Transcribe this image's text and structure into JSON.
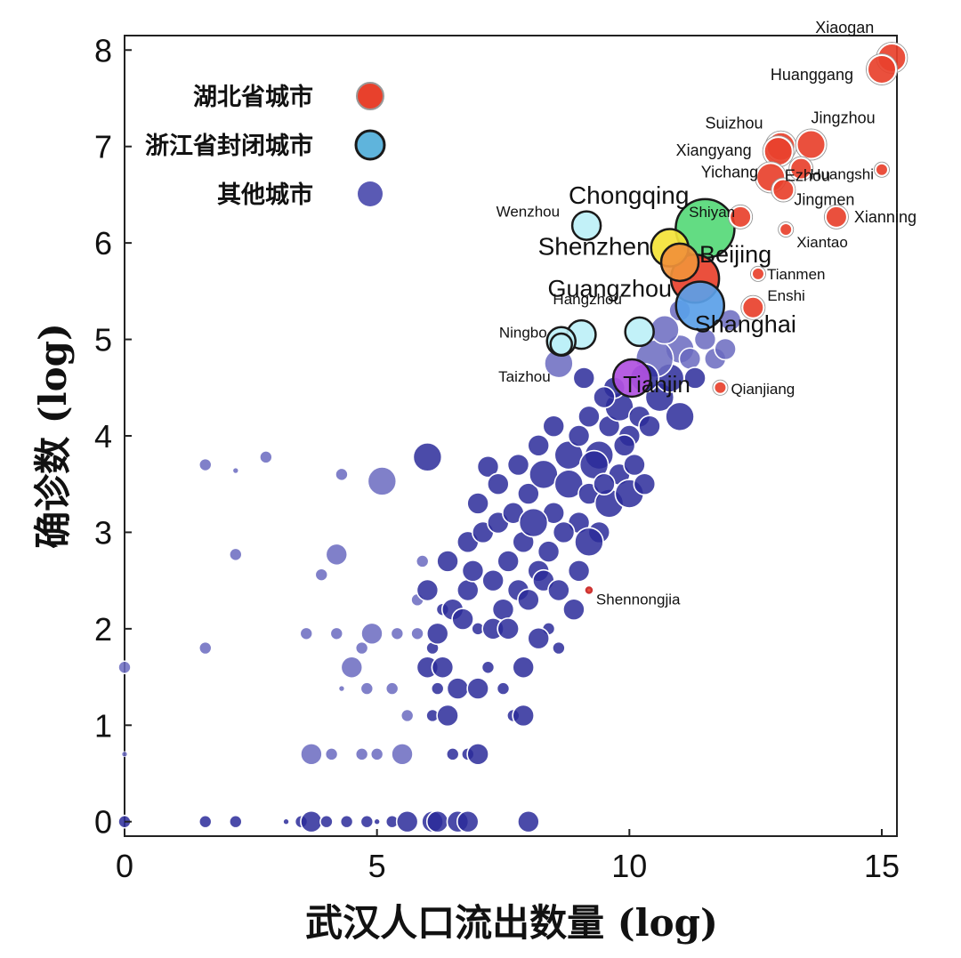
{
  "chart_data": {
    "type": "scatter",
    "title": "",
    "xlabel": "武汉人口流出数量 (log)",
    "ylabel": "确诊数 (log)",
    "xlim": [
      0,
      15.3
    ],
    "ylim": [
      -0.15,
      8.15
    ],
    "xticks": [
      0,
      5,
      10,
      15
    ],
    "yticks": [
      0,
      1,
      2,
      3,
      4,
      5,
      6,
      7,
      8
    ],
    "grid": false,
    "legend_position": "top-left",
    "legend": [
      {
        "label": "湖北省城市",
        "color": "#e8412c"
      },
      {
        "label": "浙江省封闭城市",
        "color": "#5fb4dc"
      },
      {
        "label": "其他城市",
        "color": "#5a5ab4"
      }
    ],
    "colors": {
      "hubei": "#e8412c",
      "zhejiang": "#bdf0f7",
      "other": "#2b2b9a",
      "other_light": "#6a6abf"
    },
    "labeled_points": [
      {
        "label": "Xiaogan",
        "x": 15.2,
        "y": 7.92,
        "size": 3,
        "color": "#e8412c",
        "ring": "#ffffff"
      },
      {
        "label": "Huanggang",
        "x": 15.0,
        "y": 7.8,
        "size": 3,
        "color": "#e8412c",
        "ring": "#ffffff"
      },
      {
        "label": "Suizhou",
        "x": 13.0,
        "y": 7.0,
        "size": 3,
        "color": "#e8412c",
        "ring": "#ffffff"
      },
      {
        "label": "Jingzhou",
        "x": 13.6,
        "y": 7.02,
        "size": 3,
        "color": "#e8412c",
        "ring": "#ffffff"
      },
      {
        "label": "Xiangyang",
        "x": 12.95,
        "y": 6.95,
        "size": 3,
        "color": "#e8412c",
        "ring": "#ffffff"
      },
      {
        "label": "Ezhou",
        "x": 15.0,
        "y": 6.76,
        "size": 1,
        "color": "#e8412c",
        "ring": "#ffffff"
      },
      {
        "label": "Huangshi",
        "x": 13.4,
        "y": 6.77,
        "size": 2,
        "color": "#e8412c",
        "ring": "#ffffff"
      },
      {
        "label": "Yichang",
        "x": 12.8,
        "y": 6.68,
        "size": 3,
        "color": "#e8412c",
        "ring": "#ffffff"
      },
      {
        "label": "Jingmen",
        "x": 13.05,
        "y": 6.55,
        "size": 2,
        "color": "#e8412c",
        "ring": "#ffffff"
      },
      {
        "label": "Shiyan",
        "x": 12.2,
        "y": 6.27,
        "size": 2,
        "color": "#e8412c",
        "ring": "#ffffff"
      },
      {
        "label": "Xianning",
        "x": 14.1,
        "y": 6.27,
        "size": 2,
        "color": "#e8412c",
        "ring": "#ffffff"
      },
      {
        "label": "Xiantao",
        "x": 13.1,
        "y": 6.14,
        "size": 1,
        "color": "#e8412c",
        "ring": "#ffffff"
      },
      {
        "label": "Tianmen",
        "x": 12.55,
        "y": 5.68,
        "size": 1,
        "color": "#e8412c",
        "ring": "#ffffff"
      },
      {
        "label": "Enshi",
        "x": 12.45,
        "y": 5.33,
        "size": 2,
        "color": "#e8412c",
        "ring": "#ffffff"
      },
      {
        "label": "Qianjiang",
        "x": 11.8,
        "y": 4.5,
        "size": 1,
        "color": "#e8412c",
        "ring": "#ffffff"
      },
      {
        "label": "Shennongjia",
        "x": 9.2,
        "y": 2.4,
        "size": 0,
        "color": "#e8412c",
        "ring": "#cc3333"
      },
      {
        "label": "Chongqing",
        "x": 11.5,
        "y": 6.15,
        "size": 6,
        "color": "#56d978",
        "ring": "#1a1a1a"
      },
      {
        "label": "Shenzhen",
        "x": 10.8,
        "y": 5.95,
        "size": 4,
        "color": "#f4e337",
        "ring": "#1a1a1a"
      },
      {
        "label": "Beijing",
        "x": 11.0,
        "y": 5.8,
        "size": 4,
        "color": "#f0913a",
        "ring": "#1a1a1a"
      },
      {
        "label": "Guangzhou",
        "x": 11.3,
        "y": 5.63,
        "size": 5,
        "color": "#e8412c",
        "ring": "#1a1a1a"
      },
      {
        "label": "Shanghai",
        "x": 11.4,
        "y": 5.35,
        "size": 5,
        "color": "#5a9fe8",
        "ring": "#1a1a1a"
      },
      {
        "label": "Tianjin",
        "x": 10.05,
        "y": 4.6,
        "size": 4,
        "color": "#b050e0",
        "ring": "#1a1a1a"
      },
      {
        "label": "Wenzhou",
        "x": 9.15,
        "y": 6.18,
        "size": 3,
        "color": "#bdf0f7",
        "ring": "#1a1a1a"
      },
      {
        "label": "Hangzhou",
        "x": 9.05,
        "y": 5.05,
        "size": 3,
        "color": "#bdf0f7",
        "ring": "#1a1a1a"
      },
      {
        "label": "Ningbo",
        "x": 8.65,
        "y": 4.98,
        "size": 3,
        "color": "#bdf0f7",
        "ring": "#1a1a1a"
      },
      {
        "label": "Taizhou",
        "x": 8.65,
        "y": 4.95,
        "size": 2,
        "color": "#bdf0f7",
        "ring": "#1a1a1a"
      },
      {
        "label": "",
        "x": 10.2,
        "y": 5.08,
        "size": 3,
        "color": "#bdf0f7",
        "ring": "#1a1a1a"
      }
    ],
    "other_points": [
      [
        0.0,
        0.0,
        1
      ],
      [
        0.0,
        0.7,
        0
      ],
      [
        0.0,
        1.6,
        1
      ],
      [
        1.6,
        0.0,
        1
      ],
      [
        1.6,
        1.8,
        1
      ],
      [
        1.6,
        3.7,
        1
      ],
      [
        2.2,
        0.0,
        1
      ],
      [
        2.2,
        2.77,
        1
      ],
      [
        2.2,
        3.64,
        0
      ],
      [
        2.8,
        3.78,
        1
      ],
      [
        3.2,
        0.0,
        0
      ],
      [
        3.5,
        0.0,
        1
      ],
      [
        3.6,
        1.95,
        1
      ],
      [
        3.7,
        0.0,
        2
      ],
      [
        3.7,
        0.7,
        2
      ],
      [
        3.9,
        2.56,
        1
      ],
      [
        4.0,
        0.0,
        1
      ],
      [
        4.1,
        0.7,
        1
      ],
      [
        4.2,
        1.95,
        1
      ],
      [
        4.2,
        2.77,
        2
      ],
      [
        4.3,
        1.38,
        0
      ],
      [
        4.3,
        3.6,
        1
      ],
      [
        4.4,
        0.0,
        1
      ],
      [
        4.5,
        1.6,
        2
      ],
      [
        4.7,
        1.8,
        1
      ],
      [
        4.7,
        0.7,
        1
      ],
      [
        4.8,
        0.0,
        1
      ],
      [
        4.8,
        1.38,
        1
      ],
      [
        4.9,
        1.95,
        2
      ],
      [
        5.0,
        0.0,
        0
      ],
      [
        5.0,
        0.7,
        1
      ],
      [
        5.1,
        3.53,
        3
      ],
      [
        5.3,
        1.38,
        1
      ],
      [
        5.3,
        0.0,
        1
      ],
      [
        5.4,
        1.95,
        1
      ],
      [
        5.5,
        0.7,
        2
      ],
      [
        5.6,
        1.1,
        1
      ],
      [
        5.6,
        0.0,
        2
      ],
      [
        5.8,
        1.95,
        1
      ],
      [
        5.8,
        2.3,
        1
      ],
      [
        6.0,
        1.6,
        2
      ],
      [
        6.0,
        3.78,
        3
      ],
      [
        6.1,
        0.0,
        2
      ],
      [
        6.1,
        1.1,
        1
      ],
      [
        6.1,
        1.8,
        1
      ],
      [
        6.2,
        0.0,
        2
      ],
      [
        6.2,
        1.38,
        1
      ],
      [
        6.3,
        2.2,
        1
      ],
      [
        6.4,
        1.1,
        2
      ],
      [
        6.5,
        0.7,
        1
      ],
      [
        6.6,
        0.0,
        2
      ],
      [
        6.8,
        0.7,
        1
      ],
      [
        6.8,
        0.0,
        2
      ],
      [
        7.0,
        0.7,
        2
      ],
      [
        7.2,
        3.68,
        2
      ],
      [
        7.5,
        1.38,
        1
      ],
      [
        7.7,
        1.1,
        1
      ],
      [
        7.9,
        1.1,
        2
      ],
      [
        8.0,
        0.0,
        2
      ],
      [
        8.6,
        4.75,
        3
      ],
      [
        6.8,
        2.4,
        2
      ],
      [
        6.5,
        2.2,
        2
      ],
      [
        7.0,
        2.0,
        1
      ],
      [
        7.3,
        2.0,
        2
      ],
      [
        6.2,
        1.95,
        2
      ],
      [
        6.6,
        1.38,
        2
      ],
      [
        7.0,
        1.38,
        2
      ],
      [
        7.2,
        1.6,
        1
      ],
      [
        6.3,
        1.6,
        2
      ],
      [
        7.5,
        2.2,
        2
      ],
      [
        7.8,
        2.4,
        2
      ],
      [
        8.2,
        2.6,
        2
      ],
      [
        8.4,
        2.0,
        1
      ],
      [
        8.6,
        1.8,
        1
      ],
      [
        8.9,
        2.2,
        2
      ],
      [
        6.0,
        2.4,
        2
      ],
      [
        6.4,
        2.7,
        2
      ],
      [
        6.8,
        2.9,
        2
      ],
      [
        7.1,
        3.0,
        2
      ],
      [
        7.4,
        3.1,
        2
      ],
      [
        7.7,
        3.2,
        2
      ],
      [
        8.0,
        3.4,
        2
      ],
      [
        8.3,
        3.6,
        3
      ],
      [
        8.5,
        3.2,
        2
      ],
      [
        8.8,
        3.5,
        3
      ],
      [
        9.0,
        3.1,
        2
      ],
      [
        9.2,
        3.4,
        2
      ],
      [
        9.4,
        3.0,
        2
      ],
      [
        9.6,
        3.3,
        3
      ],
      [
        9.8,
        3.6,
        2
      ],
      [
        10.0,
        3.4,
        3
      ],
      [
        8.2,
        3.9,
        2
      ],
      [
        8.5,
        4.1,
        2
      ],
      [
        8.8,
        3.8,
        3
      ],
      [
        9.0,
        4.0,
        2
      ],
      [
        9.2,
        4.2,
        2
      ],
      [
        9.4,
        3.8,
        3
      ],
      [
        9.6,
        4.1,
        2
      ],
      [
        9.8,
        4.3,
        3
      ],
      [
        10.0,
        4.0,
        2
      ],
      [
        10.2,
        4.2,
        2
      ],
      [
        10.4,
        4.1,
        2
      ],
      [
        10.6,
        4.4,
        3
      ],
      [
        10.8,
        4.6,
        3
      ],
      [
        11.0,
        4.9,
        3
      ],
      [
        11.2,
        4.8,
        2
      ],
      [
        11.5,
        5.0,
        2
      ],
      [
        11.7,
        4.8,
        2
      ],
      [
        11.0,
        4.2,
        3
      ],
      [
        10.5,
        4.8,
        4
      ],
      [
        10.3,
        4.6,
        3
      ],
      [
        9.7,
        4.5,
        2
      ],
      [
        9.5,
        4.4,
        2
      ],
      [
        9.1,
        4.6,
        2
      ],
      [
        7.6,
        2.7,
        2
      ],
      [
        7.9,
        2.9,
        2
      ],
      [
        8.1,
        3.1,
        3
      ],
      [
        8.4,
        2.8,
        2
      ],
      [
        8.7,
        3.0,
        2
      ],
      [
        9.3,
        3.7,
        3
      ],
      [
        9.5,
        3.5,
        2
      ],
      [
        9.9,
        3.9,
        2
      ],
      [
        10.1,
        3.7,
        2
      ],
      [
        10.3,
        3.5,
        2
      ],
      [
        6.9,
        2.6,
        2
      ],
      [
        7.3,
        2.5,
        2
      ],
      [
        7.6,
        2.0,
        2
      ],
      [
        8.0,
        2.3,
        2
      ],
      [
        8.3,
        2.5,
        2
      ],
      [
        9.0,
        2.6,
        2
      ],
      [
        9.2,
        2.9,
        3
      ],
      [
        7.9,
        1.6,
        2
      ],
      [
        8.2,
        1.9,
        2
      ],
      [
        7.0,
        3.3,
        2
      ],
      [
        7.4,
        3.5,
        2
      ],
      [
        7.8,
        3.7,
        2
      ],
      [
        8.6,
        2.4,
        2
      ],
      [
        5.9,
        2.7,
        1
      ],
      [
        6.7,
        2.1,
        2
      ],
      [
        11.0,
        5.3,
        2
      ],
      [
        10.7,
        5.1,
        3
      ],
      [
        11.3,
        4.6,
        2
      ],
      [
        11.9,
        4.9,
        2
      ],
      [
        12.0,
        5.2,
        2
      ]
    ]
  }
}
